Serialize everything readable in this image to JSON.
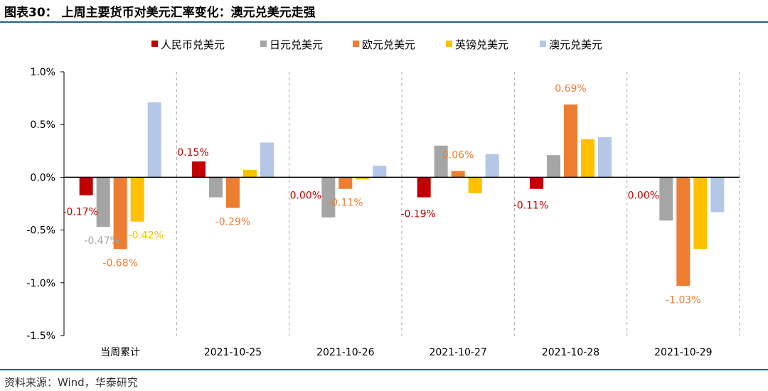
{
  "header": {
    "title": "图表30：  上周主要货币对美元汇率变化：澳元兑美元走强"
  },
  "footer": {
    "source": "资料来源：Wind，华泰研究"
  },
  "chart_data": {
    "type": "bar",
    "title": "上周主要货币对美元汇率变化：澳元兑美元走强",
    "categories": [
      "当周累计",
      "2021-10-25",
      "2021-10-26",
      "2021-10-27",
      "2021-10-28",
      "2021-10-29"
    ],
    "ylim": [
      -1.5,
      1.0
    ],
    "yticks": [
      1.0,
      0.5,
      0.0,
      -0.5,
      -1.0,
      -1.5
    ],
    "ytick_labels": [
      "1.0%",
      "0.5%",
      "0.0%",
      "-0.5%",
      "-1.0%",
      "-1.5%"
    ],
    "xlabel": "",
    "ylabel": "",
    "legend_position": "top",
    "series": [
      {
        "name": "人民币兑美元",
        "color": "#c00000",
        "values": [
          -0.17,
          0.15,
          0.0,
          -0.19,
          -0.11,
          0.0
        ]
      },
      {
        "name": "日元兑美元",
        "color": "#a5a5a5",
        "values": [
          -0.47,
          -0.19,
          -0.38,
          0.3,
          0.21,
          -0.41
        ]
      },
      {
        "name": "欧元兑美元",
        "color": "#ed7d31",
        "values": [
          -0.68,
          -0.29,
          -0.11,
          0.06,
          0.69,
          -1.03
        ]
      },
      {
        "name": "英镑兑美元",
        "color": "#ffc000",
        "values": [
          -0.42,
          0.07,
          -0.02,
          -0.15,
          0.36,
          -0.68
        ]
      },
      {
        "name": "澳元兑美元",
        "color": "#b4c7e7",
        "values": [
          0.71,
          0.33,
          0.11,
          0.22,
          0.38,
          -0.33
        ]
      }
    ],
    "data_labels": [
      {
        "series": 0,
        "category": 0,
        "text": "-0.17%"
      },
      {
        "series": 1,
        "category": 0,
        "text": "-0.47%"
      },
      {
        "series": 2,
        "category": 0,
        "text": "-0.68%"
      },
      {
        "series": 3,
        "category": 0,
        "text": "-0.42%"
      },
      {
        "series": 0,
        "category": 1,
        "text": "0.15%"
      },
      {
        "series": 2,
        "category": 1,
        "text": "-0.29%"
      },
      {
        "series": 0,
        "category": 2,
        "text": "0.00%"
      },
      {
        "series": 2,
        "category": 2,
        "text": "-0.11%"
      },
      {
        "series": 0,
        "category": 3,
        "text": "-0.19%"
      },
      {
        "series": 2,
        "category": 3,
        "text": "0.06%"
      },
      {
        "series": 0,
        "category": 4,
        "text": "-0.11%"
      },
      {
        "series": 2,
        "category": 4,
        "text": "0.69%"
      },
      {
        "series": 0,
        "category": 5,
        "text": "0.00%"
      },
      {
        "series": 2,
        "category": 5,
        "text": "-1.03%"
      }
    ]
  }
}
